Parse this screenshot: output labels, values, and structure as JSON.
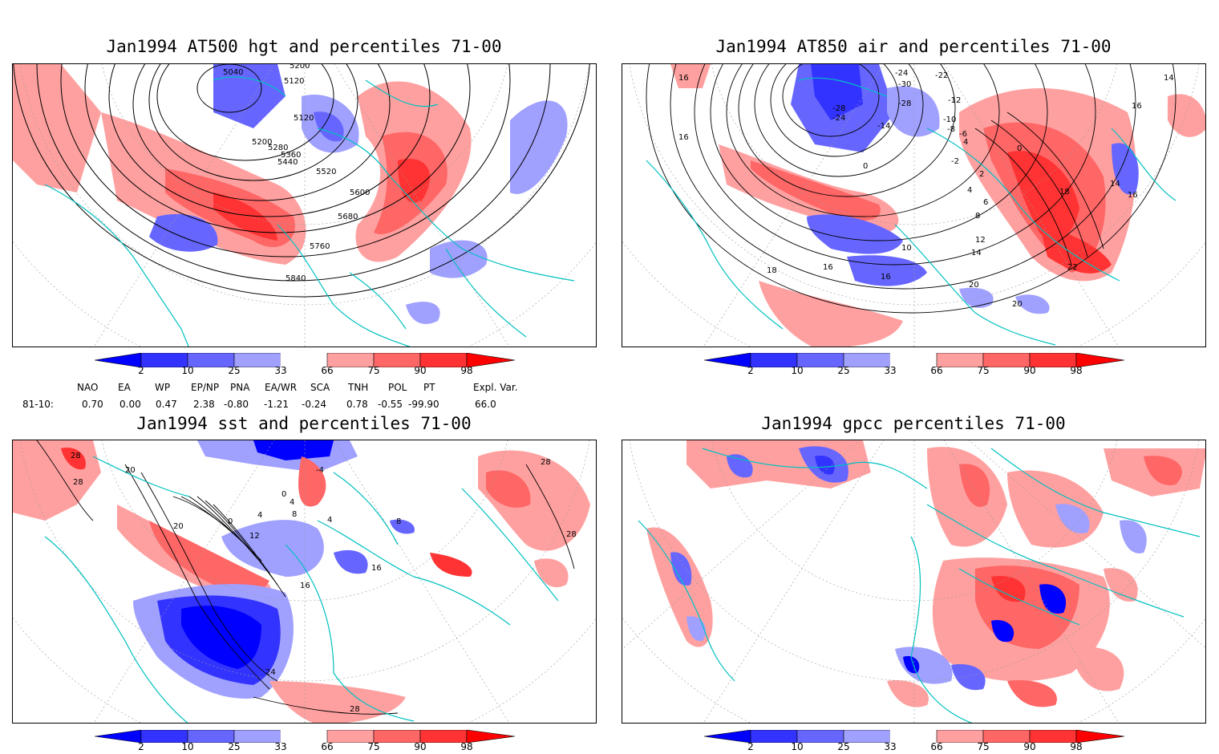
{
  "panels": [
    {
      "title": "Jan1994 AT500 hgt and percentiles 71-00",
      "contour_labels": [
        "5040",
        "5120",
        "5200",
        "5120",
        "5200",
        "5280",
        "5360",
        "5440",
        "5520",
        "5600",
        "5680",
        "5760",
        "5840"
      ]
    },
    {
      "title": "Jan1994 AT850 air and percentiles 71-00",
      "contour_labels": [
        "16",
        "-28",
        "-24",
        "-30",
        "-28",
        "-24",
        "-22",
        "-14",
        "-12",
        "-10",
        "-8",
        "-6",
        "4",
        "0",
        "-2",
        "2",
        "4",
        "6",
        "8",
        "10",
        "12",
        "14",
        "16",
        "16",
        "18",
        "20",
        "20",
        "22",
        "14",
        "16",
        "16",
        "14",
        "18",
        "16",
        "0"
      ]
    },
    {
      "title": "Jan1994 sst and percentiles 71-00",
      "contour_labels": [
        "28",
        "28",
        "20",
        "20",
        "0",
        "4",
        "8",
        "12",
        "16",
        "0",
        "4",
        "-4",
        "4",
        "8",
        "28",
        "16",
        "24",
        "28",
        "28"
      ]
    },
    {
      "title": "Jan1994 gpcc percentiles 71-00",
      "contour_labels": []
    }
  ],
  "colorbar": {
    "ticks": [
      "2",
      "10",
      "25",
      "33",
      "66",
      "75",
      "90",
      "98"
    ],
    "colors": [
      "#0000ff",
      "#3333ff",
      "#6666ff",
      "#a0a0ff",
      "#ffffff",
      "#ffa0a0",
      "#ff6666",
      "#ff3333",
      "#ff0000"
    ]
  },
  "indices": {
    "headers": [
      "NAO",
      "EA",
      "WP",
      "EP/NP",
      "PNA",
      "EA/WR",
      "SCA",
      "TNH",
      "POL",
      "PT",
      "Expl. Var."
    ],
    "row_label": "81-10:",
    "values": [
      "0.70",
      "0.00",
      "0.47",
      "2.38",
      "-0.80",
      "-1.21",
      "-0.24",
      "0.78",
      "-0.55",
      "-99.90",
      "66.0"
    ]
  },
  "coastline_color": "#00c0c0"
}
